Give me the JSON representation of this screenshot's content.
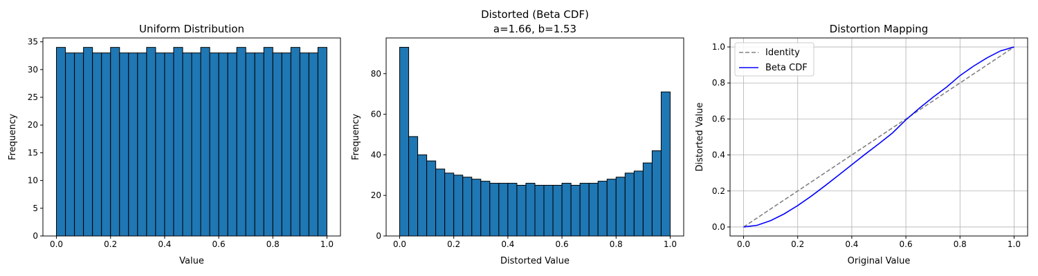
{
  "chart_data": [
    {
      "type": "bar",
      "title": "Uniform Distribution",
      "xlabel": "Value",
      "ylabel": "Frequency",
      "xlim": [
        -0.05,
        1.05
      ],
      "ylim": [
        0,
        35.7
      ],
      "xticks": [
        "0.0",
        "0.2",
        "0.4",
        "0.6",
        "0.8",
        "1.0"
      ],
      "yticks": [
        "0",
        "5",
        "10",
        "15",
        "20",
        "25",
        "30",
        "35"
      ],
      "bin_range": [
        0,
        1
      ],
      "values": [
        34,
        33,
        33,
        34,
        33,
        33,
        34,
        33,
        33,
        33,
        34,
        33,
        33,
        34,
        33,
        33,
        34,
        33,
        33,
        33,
        34,
        33,
        33,
        34,
        33,
        33,
        34,
        33,
        33,
        34
      ],
      "bar_color": "#1f77b4",
      "edge_color": "#000000",
      "grid": false
    },
    {
      "type": "bar",
      "title": "Distorted (Beta CDF)",
      "subtitle": "a=1.66, b=1.53",
      "xlabel": "Distorted Value",
      "ylabel": "Frequency",
      "xlim": [
        -0.05,
        1.05
      ],
      "ylim": [
        0,
        97.6
      ],
      "xticks": [
        "0.0",
        "0.2",
        "0.4",
        "0.6",
        "0.8",
        "1.0"
      ],
      "yticks": [
        "0",
        "20",
        "40",
        "60",
        "80"
      ],
      "bin_range": [
        0,
        1
      ],
      "values": [
        93,
        49,
        40,
        37,
        33,
        31,
        30,
        29,
        28,
        27,
        26,
        26,
        26,
        25,
        26,
        25,
        25,
        25,
        26,
        25,
        26,
        26,
        27,
        28,
        29,
        31,
        32,
        36,
        42,
        71
      ],
      "bar_color": "#1f77b4",
      "edge_color": "#000000",
      "grid": false
    },
    {
      "type": "line",
      "title": "Distortion Mapping",
      "xlabel": "Original Value",
      "ylabel": "Distorted Value",
      "xlim": [
        -0.05,
        1.05
      ],
      "ylim": [
        -0.05,
        1.05
      ],
      "xticks": [
        "0.0",
        "0.2",
        "0.4",
        "0.6",
        "0.8",
        "1.0"
      ],
      "yticks": [
        "0.0",
        "0.2",
        "0.4",
        "0.6",
        "0.8",
        "1.0"
      ],
      "grid": true,
      "legend_position": "upper-left",
      "series": [
        {
          "name": "Identity",
          "color": "#808080",
          "dashed": true,
          "x": [
            0.0,
            1.0
          ],
          "y": [
            0.0,
            1.0
          ]
        },
        {
          "name": "Beta CDF",
          "color": "#0000ff",
          "dashed": false,
          "x": [
            0.0,
            0.05,
            0.1,
            0.15,
            0.2,
            0.25,
            0.3,
            0.35,
            0.4,
            0.45,
            0.5,
            0.55,
            0.6,
            0.65,
            0.7,
            0.75,
            0.8,
            0.85,
            0.9,
            0.95,
            1.0
          ],
          "y": [
            0.0,
            0.0094,
            0.0352,
            0.0727,
            0.1189,
            0.1712,
            0.2276,
            0.2864,
            0.3459,
            0.4049,
            0.4621,
            0.5216,
            0.5952,
            0.6601,
            0.7203,
            0.7765,
            0.8408,
            0.8934,
            0.9396,
            0.9783,
            1.0
          ]
        }
      ]
    }
  ]
}
